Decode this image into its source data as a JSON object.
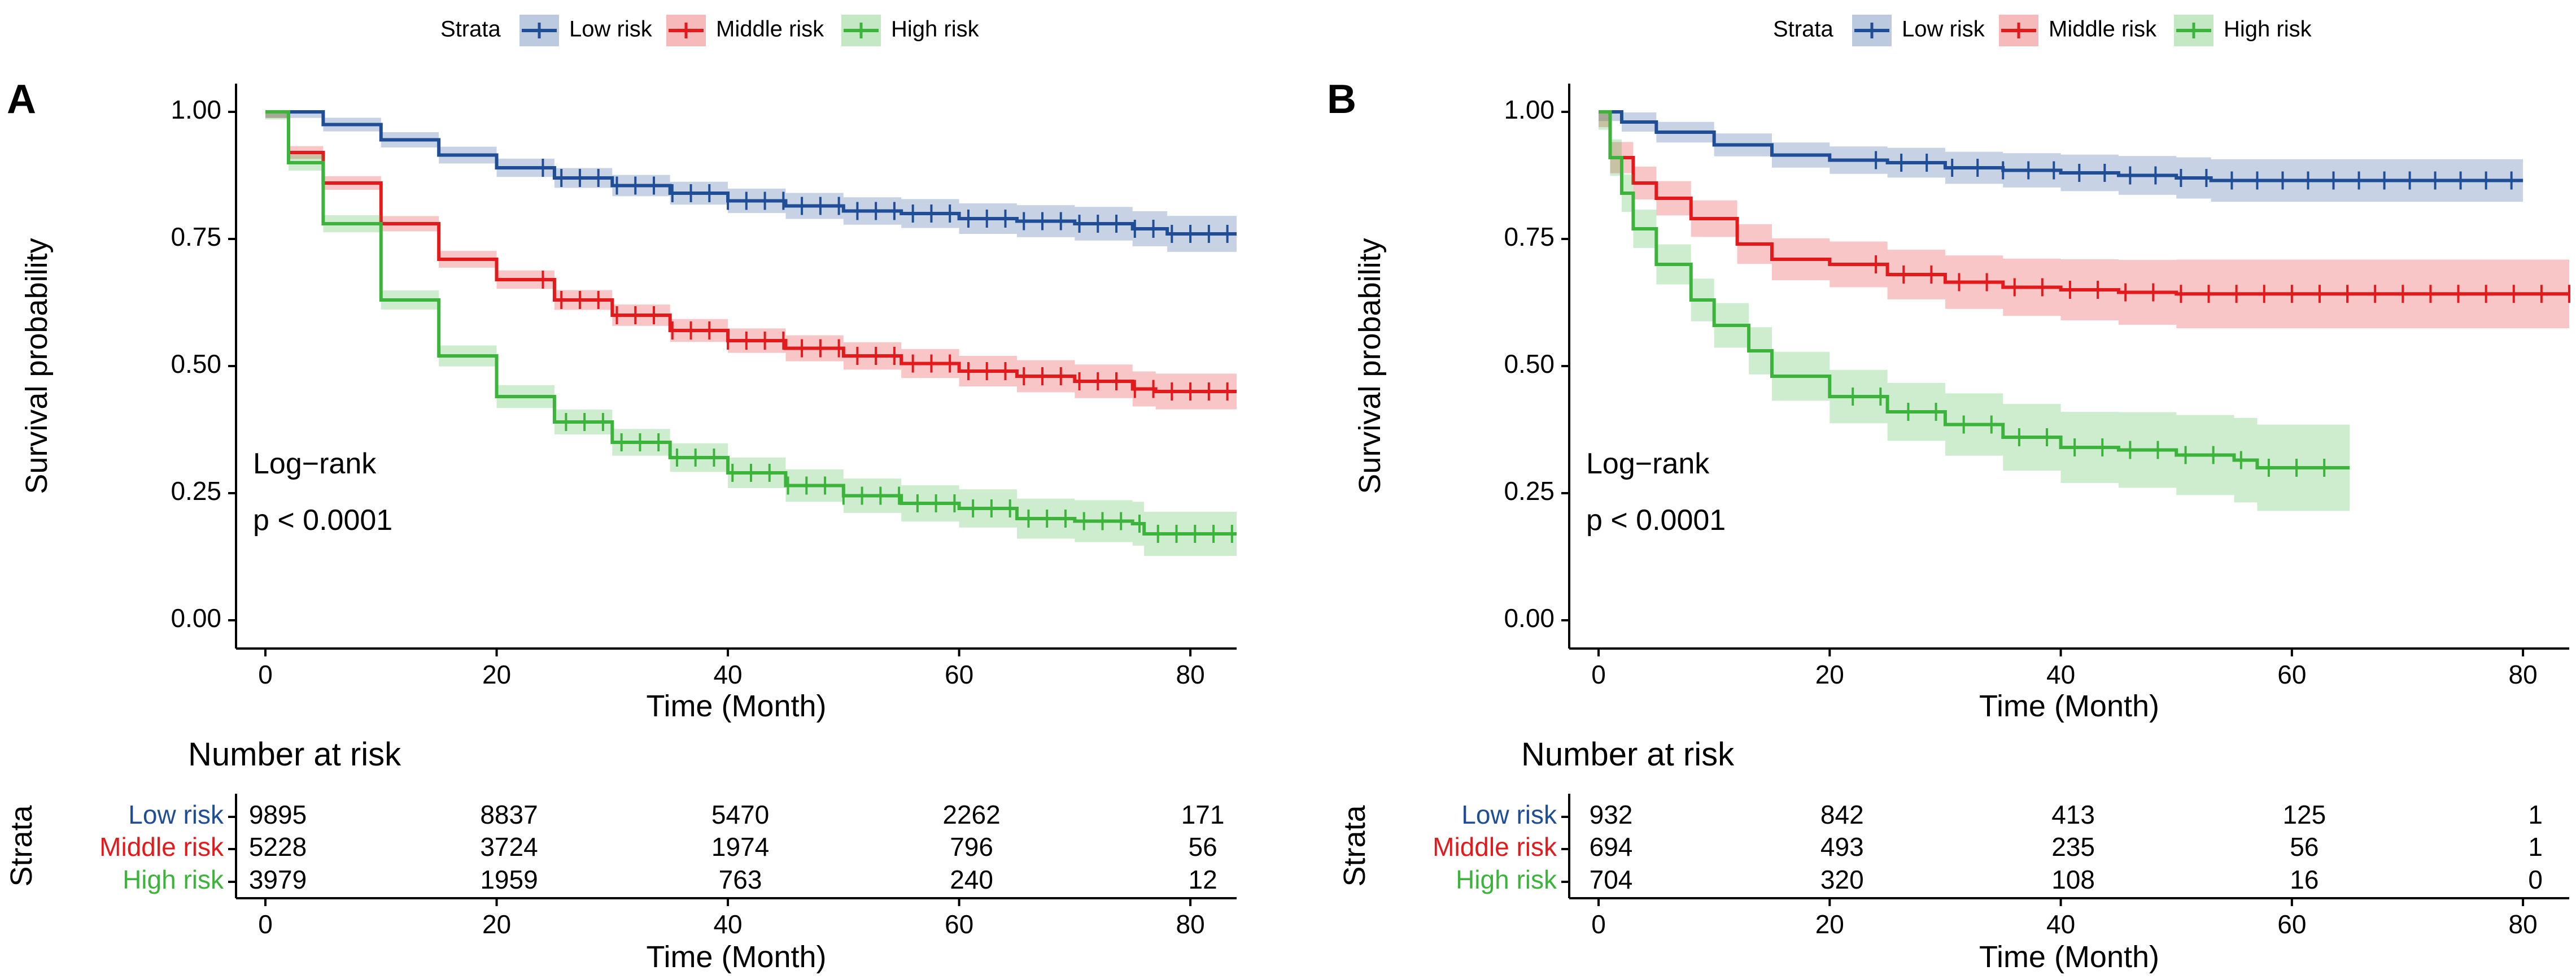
{
  "colors": {
    "low": "#1f4e96",
    "middle": "#e31a1c",
    "high": "#3cb43c"
  },
  "chart_data": [
    {
      "type": "line",
      "panel_label": "A",
      "legend": {
        "title": "Strata",
        "placement": "top",
        "entries": [
          "Low risk",
          "Middle risk",
          "High risk"
        ]
      },
      "xlabel": "Time (Month)",
      "ylabel": "Survival probability",
      "xlim": [
        0,
        84
      ],
      "ylim": [
        0,
        1
      ],
      "x_ticks": [
        0,
        20,
        40,
        60,
        80
      ],
      "x_tick_labels": [
        "0",
        "20",
        "40",
        "60",
        "80"
      ],
      "y_ticks": [
        0,
        0.25,
        0.5,
        0.75,
        1
      ],
      "y_tick_labels": [
        "0.00",
        "0.25",
        "0.50",
        "0.75",
        "1.00"
      ],
      "annotation": [
        "Log−rank",
        "p < 0.0001"
      ],
      "series": [
        {
          "name": "Low risk",
          "color_key": "low",
          "band": 0.012,
          "x": [
            0,
            5,
            10,
            15,
            20,
            25,
            30,
            35,
            40,
            45,
            50,
            55,
            60,
            65,
            70,
            75,
            78,
            84
          ],
          "y": [
            1.0,
            0.975,
            0.945,
            0.915,
            0.89,
            0.87,
            0.855,
            0.84,
            0.825,
            0.815,
            0.805,
            0.8,
            0.79,
            0.785,
            0.78,
            0.77,
            0.76,
            0.76
          ],
          "censor_from": 24,
          "censor_step": 1.6
        },
        {
          "name": "Middle risk",
          "color_key": "middle",
          "band": 0.012,
          "x": [
            0,
            2,
            5,
            10,
            15,
            20,
            25,
            30,
            35,
            40,
            45,
            50,
            55,
            60,
            65,
            70,
            75,
            77,
            84
          ],
          "y": [
            1.0,
            0.92,
            0.86,
            0.78,
            0.71,
            0.67,
            0.63,
            0.6,
            0.57,
            0.55,
            0.535,
            0.52,
            0.505,
            0.49,
            0.48,
            0.47,
            0.455,
            0.45,
            0.45
          ],
          "censor_from": 24,
          "censor_step": 1.6
        },
        {
          "name": "High risk",
          "color_key": "high",
          "band": 0.015,
          "x": [
            0,
            2,
            5,
            10,
            15,
            20,
            25,
            30,
            35,
            40,
            45,
            50,
            55,
            60,
            65,
            70,
            75,
            76,
            84
          ],
          "y": [
            1.0,
            0.9,
            0.78,
            0.63,
            0.52,
            0.44,
            0.39,
            0.35,
            0.32,
            0.29,
            0.265,
            0.245,
            0.23,
            0.22,
            0.2,
            0.195,
            0.19,
            0.17,
            0.17
          ],
          "censor_from": 26,
          "censor_step": 1.6
        }
      ],
      "risk_table": {
        "title": "Number at risk",
        "ylabel": "Strata",
        "xlabel": "Time (Month)",
        "times": [
          0,
          20,
          40,
          60,
          80
        ],
        "tick_labels": [
          "0",
          "20",
          "40",
          "60",
          "80"
        ],
        "rows": [
          {
            "label": "Low risk",
            "color_key": "low",
            "values": [
              "9895",
              "8837",
              "5470",
              "2262",
              "171"
            ]
          },
          {
            "label": "Middle risk",
            "color_key": "middle",
            "values": [
              "5228",
              "3724",
              "1974",
              "796",
              "56"
            ]
          },
          {
            "label": "High risk",
            "color_key": "high",
            "values": [
              "3979",
              "1959",
              "763",
              "240",
              "12"
            ]
          }
        ]
      }
    },
    {
      "type": "line",
      "panel_label": "B",
      "legend": {
        "title": "Strata",
        "placement": "top",
        "entries": [
          "Low risk",
          "Middle risk",
          "High risk"
        ]
      },
      "xlabel": "Time (Month)",
      "ylabel": "Survival probability",
      "xlim": [
        0,
        84
      ],
      "ylim": [
        0,
        1
      ],
      "x_ticks": [
        0,
        20,
        40,
        60,
        80
      ],
      "x_tick_labels": [
        "0",
        "20",
        "40",
        "60",
        "80"
      ],
      "y_ticks": [
        0,
        0.25,
        0.5,
        0.75,
        1
      ],
      "y_tick_labels": [
        "0.00",
        "0.25",
        "0.50",
        "0.75",
        "1.00"
      ],
      "annotation": [
        "Log−rank",
        "p < 0.0001"
      ],
      "series": [
        {
          "name": "Low risk",
          "color_key": "low",
          "band": 0.018,
          "x": [
            0,
            2,
            5,
            10,
            15,
            20,
            25,
            30,
            35,
            40,
            45,
            50,
            53,
            80
          ],
          "y": [
            1.0,
            0.98,
            0.96,
            0.935,
            0.915,
            0.905,
            0.9,
            0.89,
            0.885,
            0.88,
            0.875,
            0.87,
            0.865,
            0.865
          ],
          "censor_from": 24,
          "censor_step": 2.2
        },
        {
          "name": "Middle risk",
          "color_key": "middle",
          "band": 0.03,
          "x": [
            0,
            1,
            3,
            5,
            8,
            12,
            15,
            20,
            25,
            30,
            35,
            40,
            45,
            50,
            84
          ],
          "y": [
            1.0,
            0.91,
            0.86,
            0.83,
            0.79,
            0.74,
            0.71,
            0.7,
            0.68,
            0.665,
            0.655,
            0.65,
            0.645,
            0.642,
            0.642
          ],
          "censor_from": 24,
          "censor_step": 2.4
        },
        {
          "name": "High risk",
          "color_key": "high",
          "band": 0.035,
          "x": [
            0,
            1,
            2,
            3,
            5,
            8,
            10,
            13,
            15,
            20,
            25,
            30,
            35,
            40,
            45,
            50,
            55,
            57,
            65
          ],
          "y": [
            1.0,
            0.91,
            0.84,
            0.77,
            0.7,
            0.63,
            0.58,
            0.53,
            0.48,
            0.44,
            0.41,
            0.385,
            0.36,
            0.34,
            0.335,
            0.325,
            0.315,
            0.3,
            0.3
          ],
          "censor_from": 22,
          "censor_step": 2.4
        }
      ],
      "risk_table": {
        "title": "Number at risk",
        "ylabel": "Strata",
        "xlabel": "Time (Month)",
        "times": [
          0,
          20,
          40,
          60,
          80
        ],
        "tick_labels": [
          "0",
          "20",
          "40",
          "60",
          "80"
        ],
        "rows": [
          {
            "label": "Low risk",
            "color_key": "low",
            "values": [
              "932",
              "842",
              "413",
              "125",
              "1"
            ]
          },
          {
            "label": "Middle risk",
            "color_key": "middle",
            "values": [
              "694",
              "493",
              "235",
              "56",
              "1"
            ]
          },
          {
            "label": "High risk",
            "color_key": "high",
            "values": [
              "704",
              "320",
              "108",
              "16",
              "0"
            ]
          }
        ]
      }
    }
  ]
}
